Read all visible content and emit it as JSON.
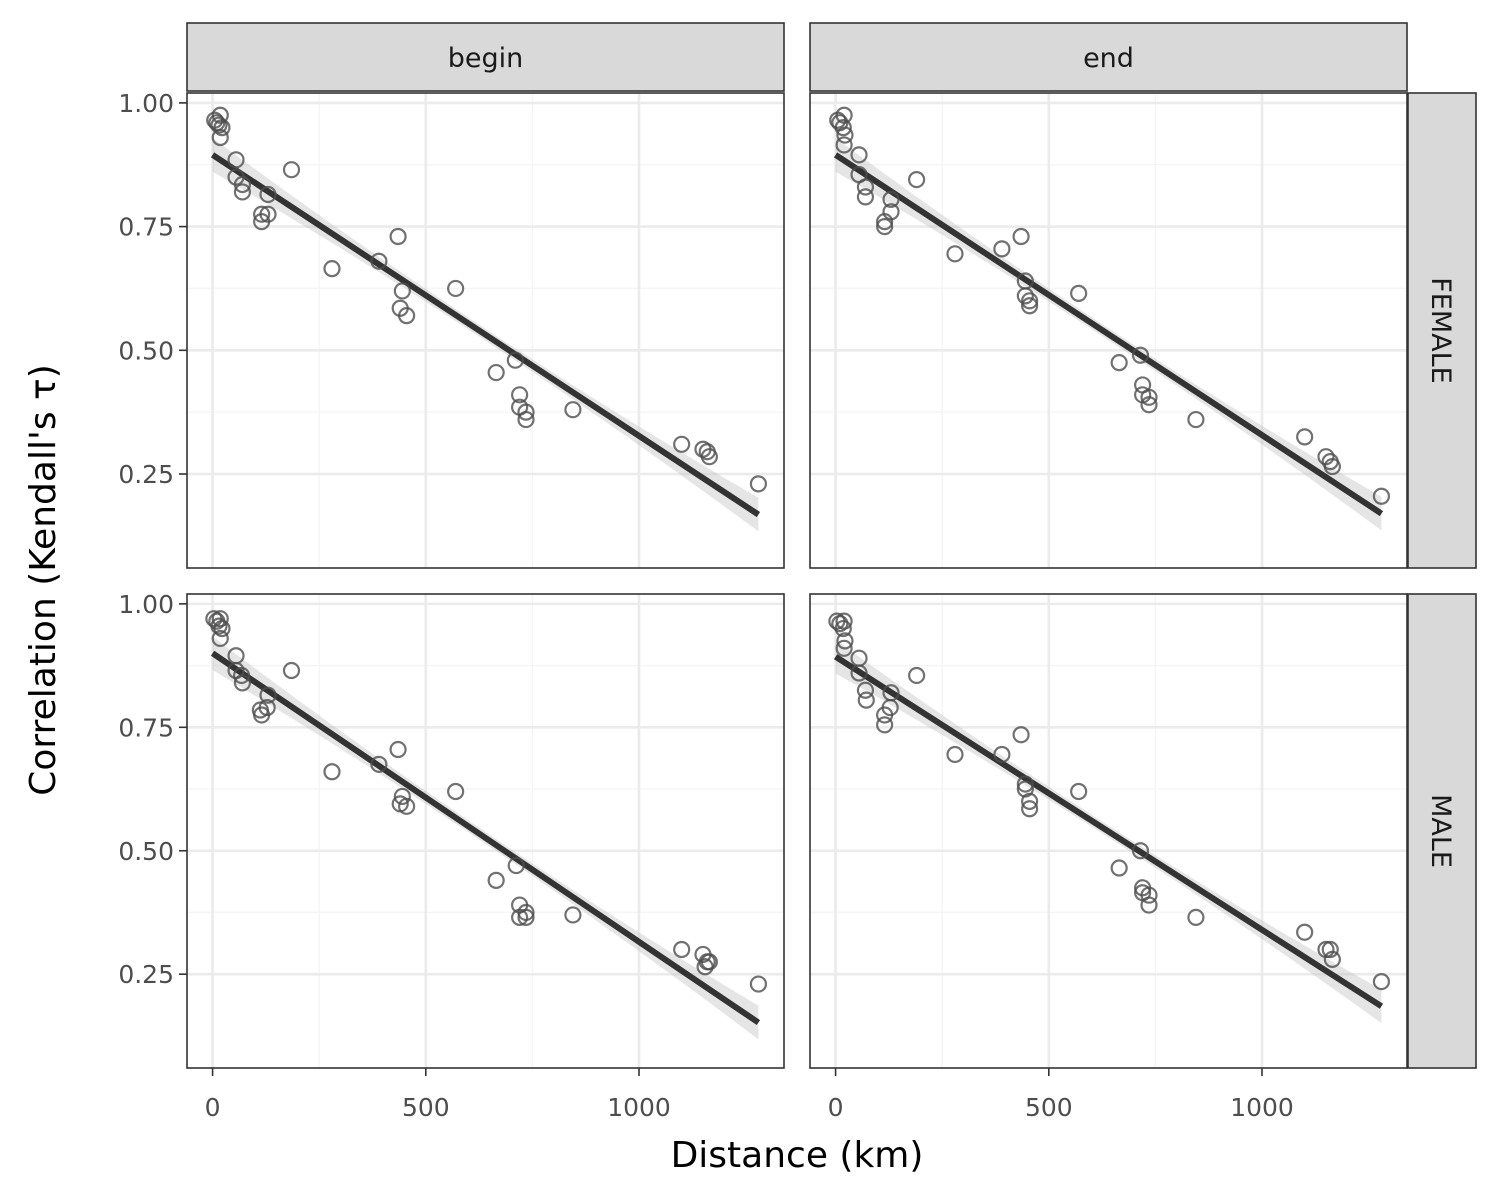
{
  "chart_data": {
    "type": "scatter",
    "xlabel": "Distance (km)",
    "ylabel": "Correlation (Kendall's τ)",
    "xlim": [
      -60,
      1340
    ],
    "ylim": [
      0.06,
      1.02
    ],
    "x_ticks": [
      0,
      500,
      1000
    ],
    "x_tick_labels": [
      "0",
      "500",
      "1000"
    ],
    "y_ticks": [
      0.25,
      0.5,
      0.75,
      1.0
    ],
    "y_tick_labels": [
      "0.25",
      "0.50",
      "0.75",
      "1.00"
    ],
    "grid": true,
    "column_strips": [
      "begin",
      "end"
    ],
    "row_strips": [
      "FEMALE",
      "MALE"
    ],
    "colors": {
      "point_stroke": "#4d4d4d",
      "fit_line": "#333333",
      "ribbon": "#bdbdbd",
      "grid_major": "#ebebeb",
      "grid_minor": "#f5f5f5",
      "strip_fill": "#d9d9d9",
      "panel_border": "#333333"
    },
    "panels": [
      {
        "column": "begin",
        "row": "FEMALE",
        "fit": {
          "x": [
            0,
            1280
          ],
          "y": [
            0.895,
            0.168
          ]
        },
        "points": [
          [
            5,
            0.965
          ],
          [
            10,
            0.96
          ],
          [
            18,
            0.975
          ],
          [
            15,
            0.955
          ],
          [
            22,
            0.95
          ],
          [
            18,
            0.93
          ],
          [
            55,
            0.885
          ],
          [
            55,
            0.85
          ],
          [
            70,
            0.835
          ],
          [
            70,
            0.82
          ],
          [
            130,
            0.815
          ],
          [
            115,
            0.775
          ],
          [
            130,
            0.775
          ],
          [
            115,
            0.76
          ],
          [
            185,
            0.865
          ],
          [
            280,
            0.665
          ],
          [
            390,
            0.68
          ],
          [
            435,
            0.73
          ],
          [
            445,
            0.62
          ],
          [
            440,
            0.585
          ],
          [
            455,
            0.57
          ],
          [
            570,
            0.625
          ],
          [
            665,
            0.455
          ],
          [
            710,
            0.48
          ],
          [
            720,
            0.41
          ],
          [
            720,
            0.385
          ],
          [
            735,
            0.375
          ],
          [
            735,
            0.36
          ],
          [
            845,
            0.38
          ],
          [
            1100,
            0.31
          ],
          [
            1150,
            0.3
          ],
          [
            1160,
            0.295
          ],
          [
            1165,
            0.285
          ],
          [
            1280,
            0.23
          ]
        ]
      },
      {
        "column": "end",
        "row": "FEMALE",
        "fit": {
          "x": [
            0,
            1280
          ],
          "y": [
            0.895,
            0.17
          ]
        },
        "points": [
          [
            5,
            0.965
          ],
          [
            10,
            0.96
          ],
          [
            20,
            0.975
          ],
          [
            18,
            0.95
          ],
          [
            22,
            0.935
          ],
          [
            20,
            0.915
          ],
          [
            55,
            0.895
          ],
          [
            55,
            0.855
          ],
          [
            70,
            0.83
          ],
          [
            70,
            0.81
          ],
          [
            130,
            0.805
          ],
          [
            130,
            0.78
          ],
          [
            115,
            0.76
          ],
          [
            115,
            0.75
          ],
          [
            190,
            0.845
          ],
          [
            280,
            0.695
          ],
          [
            390,
            0.705
          ],
          [
            435,
            0.73
          ],
          [
            445,
            0.64
          ],
          [
            445,
            0.61
          ],
          [
            455,
            0.6
          ],
          [
            455,
            0.59
          ],
          [
            570,
            0.615
          ],
          [
            665,
            0.475
          ],
          [
            715,
            0.49
          ],
          [
            720,
            0.43
          ],
          [
            720,
            0.41
          ],
          [
            735,
            0.405
          ],
          [
            735,
            0.39
          ],
          [
            845,
            0.36
          ],
          [
            1100,
            0.325
          ],
          [
            1150,
            0.285
          ],
          [
            1160,
            0.275
          ],
          [
            1165,
            0.265
          ],
          [
            1280,
            0.205
          ]
        ]
      },
      {
        "column": "begin",
        "row": "MALE",
        "fit": {
          "x": [
            0,
            1280
          ],
          "y": [
            0.9,
            0.152
          ]
        },
        "points": [
          [
            3,
            0.97
          ],
          [
            10,
            0.965
          ],
          [
            18,
            0.97
          ],
          [
            15,
            0.955
          ],
          [
            22,
            0.95
          ],
          [
            18,
            0.93
          ],
          [
            55,
            0.895
          ],
          [
            55,
            0.865
          ],
          [
            68,
            0.855
          ],
          [
            70,
            0.84
          ],
          [
            130,
            0.815
          ],
          [
            128,
            0.79
          ],
          [
            112,
            0.785
          ],
          [
            115,
            0.775
          ],
          [
            185,
            0.865
          ],
          [
            280,
            0.66
          ],
          [
            390,
            0.675
          ],
          [
            435,
            0.705
          ],
          [
            445,
            0.61
          ],
          [
            440,
            0.595
          ],
          [
            455,
            0.59
          ],
          [
            570,
            0.62
          ],
          [
            665,
            0.44
          ],
          [
            712,
            0.47
          ],
          [
            720,
            0.39
          ],
          [
            720,
            0.365
          ],
          [
            735,
            0.375
          ],
          [
            735,
            0.365
          ],
          [
            845,
            0.37
          ],
          [
            1100,
            0.3
          ],
          [
            1150,
            0.29
          ],
          [
            1160,
            0.275
          ],
          [
            1165,
            0.275
          ],
          [
            1155,
            0.265
          ],
          [
            1280,
            0.23
          ]
        ]
      },
      {
        "column": "end",
        "row": "MALE",
        "fit": {
          "x": [
            0,
            1280
          ],
          "y": [
            0.893,
            0.185
          ]
        },
        "points": [
          [
            3,
            0.965
          ],
          [
            10,
            0.96
          ],
          [
            20,
            0.965
          ],
          [
            18,
            0.95
          ],
          [
            22,
            0.925
          ],
          [
            20,
            0.91
          ],
          [
            55,
            0.89
          ],
          [
            55,
            0.86
          ],
          [
            70,
            0.825
          ],
          [
            72,
            0.805
          ],
          [
            130,
            0.82
          ],
          [
            128,
            0.79
          ],
          [
            115,
            0.775
          ],
          [
            115,
            0.755
          ],
          [
            190,
            0.855
          ],
          [
            280,
            0.695
          ],
          [
            390,
            0.695
          ],
          [
            435,
            0.735
          ],
          [
            445,
            0.635
          ],
          [
            445,
            0.625
          ],
          [
            455,
            0.6
          ],
          [
            455,
            0.585
          ],
          [
            570,
            0.62
          ],
          [
            665,
            0.465
          ],
          [
            715,
            0.5
          ],
          [
            720,
            0.425
          ],
          [
            720,
            0.415
          ],
          [
            735,
            0.41
          ],
          [
            735,
            0.39
          ],
          [
            845,
            0.365
          ],
          [
            1100,
            0.335
          ],
          [
            1150,
            0.3
          ],
          [
            1160,
            0.3
          ],
          [
            1165,
            0.28
          ],
          [
            1280,
            0.235
          ]
        ]
      }
    ]
  }
}
